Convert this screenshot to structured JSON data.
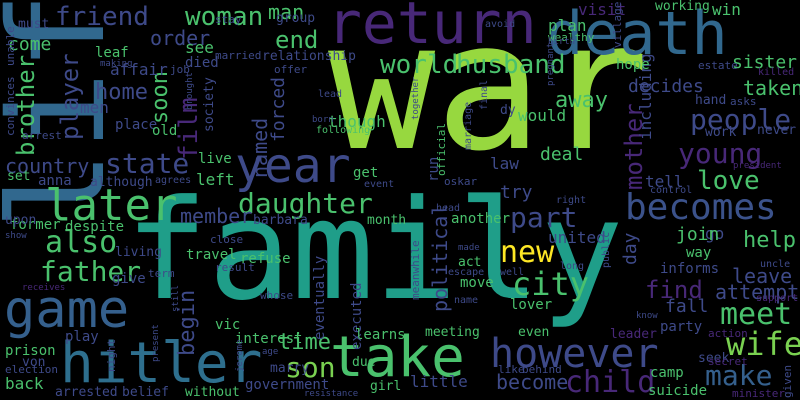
{
  "background": "#000000",
  "palette": {
    "green": "#97d83f",
    "teal": "#1f9e89",
    "blue": "#31688e",
    "purple": "#482878",
    "mint": "#4ac16d",
    "slate": "#3e4a89"
  },
  "words": [
    {
      "text": "life",
      "color": "#31688e"
    },
    {
      "text": "war",
      "color": "#97d83f"
    },
    {
      "text": "family",
      "color": "#1f9e89"
    },
    {
      "text": "death",
      "color": "#31688e"
    },
    {
      "text": "return",
      "color": "#482878"
    },
    {
      "text": "hitler",
      "color": "#2e6f8e"
    },
    {
      "text": "game",
      "color": "#35608d"
    },
    {
      "text": "take",
      "color": "#4ac16d"
    },
    {
      "text": "however",
      "color": "#3e4a89"
    },
    {
      "text": "becomes",
      "color": "#3b528b"
    },
    {
      "text": "year",
      "color": "#3e4a89"
    },
    {
      "text": "later",
      "color": "#4ac16d"
    },
    {
      "text": "daughter",
      "color": "#4ac16d"
    },
    {
      "text": "father",
      "color": "#4ac16d"
    },
    {
      "text": "people",
      "color": "#3e4a89"
    },
    {
      "text": "young",
      "color": "#482878"
    },
    {
      "text": "world",
      "color": "#4ac16d"
    },
    {
      "text": "husband",
      "color": "#4ac16d"
    },
    {
      "text": "city",
      "color": "#4ac16d"
    },
    {
      "text": "son",
      "color": "#7ad151"
    },
    {
      "text": "wife",
      "color": "#7ad151"
    },
    {
      "text": "meet",
      "color": "#4ac16d"
    },
    {
      "text": "child",
      "color": "#482878"
    },
    {
      "text": "make",
      "color": "#35608d"
    },
    {
      "text": "love",
      "color": "#4ac16d"
    },
    {
      "text": "new",
      "color": "#fde725"
    },
    {
      "text": "also",
      "color": "#4ac16d"
    },
    {
      "text": "part",
      "color": "#3e4a89"
    },
    {
      "text": "country",
      "color": "#3e4a89"
    },
    {
      "text": "state",
      "color": "#3e4a89"
    },
    {
      "text": "woman",
      "color": "#4ac16d"
    },
    {
      "text": "friend",
      "color": "#3e4a89"
    },
    {
      "text": "player",
      "color": "#3e4a89"
    },
    {
      "text": "brother",
      "color": "#4ac16d"
    },
    {
      "text": "film",
      "color": "#482878"
    },
    {
      "text": "home",
      "color": "#3e4a89"
    },
    {
      "text": "end",
      "color": "#4ac16d"
    },
    {
      "text": "man",
      "color": "#4ac16d"
    },
    {
      "text": "order",
      "color": "#3e4a89"
    },
    {
      "text": "begin",
      "color": "#3e4a89"
    },
    {
      "text": "soon",
      "color": "#4ac16d"
    },
    {
      "text": "become",
      "color": "#3e4a89"
    },
    {
      "text": "time",
      "color": "#4ac16d"
    },
    {
      "text": "named",
      "color": "#3e4a89"
    },
    {
      "text": "member",
      "color": "#3e4a89"
    },
    {
      "text": "mother",
      "color": "#482878"
    },
    {
      "text": "taken",
      "color": "#4ac16d"
    },
    {
      "text": "away",
      "color": "#4ac16d"
    },
    {
      "text": "help",
      "color": "#4ac16d"
    },
    {
      "text": "leave",
      "color": "#3e4a89"
    },
    {
      "text": "attempt",
      "color": "#3e4a89"
    },
    {
      "text": "find",
      "color": "#482878"
    },
    {
      "text": "fall",
      "color": "#3e4a89"
    },
    {
      "text": "political",
      "color": "#3e4a89"
    },
    {
      "text": "united",
      "color": "#3e4a89"
    },
    {
      "text": "try",
      "color": "#3e4a89"
    },
    {
      "text": "deal",
      "color": "#4ac16d"
    },
    {
      "text": "day",
      "color": "#3e4a89"
    },
    {
      "text": "go",
      "color": "#3e4a89"
    },
    {
      "text": "join",
      "color": "#4ac16d"
    },
    {
      "text": "sister",
      "color": "#4ac16d"
    },
    {
      "text": "decides",
      "color": "#3e4a89"
    },
    {
      "text": "visit",
      "color": "#482878"
    },
    {
      "text": "plan",
      "color": "#4ac16d"
    },
    {
      "text": "win",
      "color": "#4ac16d"
    },
    {
      "text": "working",
      "color": "#4ac16d"
    },
    {
      "text": "including",
      "color": "#3e4a89"
    },
    {
      "text": "work",
      "color": "#3e4a89"
    },
    {
      "text": "hand",
      "color": "#3e4a89"
    },
    {
      "text": "never",
      "color": "#3e4a89"
    },
    {
      "text": "hope",
      "color": "#4ac16d"
    },
    {
      "text": "would",
      "color": "#4ac16d"
    },
    {
      "text": "though",
      "color": "#4ac16d"
    },
    {
      "text": "law",
      "color": "#3e4a89"
    },
    {
      "text": "run",
      "color": "#3e4a89"
    },
    {
      "text": "get",
      "color": "#4ac16d"
    },
    {
      "text": "tell",
      "color": "#3e4a89"
    },
    {
      "text": "set",
      "color": "#4ac16d"
    },
    {
      "text": "anna",
      "color": "#3e4a89"
    },
    {
      "text": "although",
      "color": "#3e4a89"
    },
    {
      "text": "left",
      "color": "#4ac16d"
    },
    {
      "text": "live",
      "color": "#4ac16d"
    },
    {
      "text": "forced",
      "color": "#3e4a89"
    },
    {
      "text": "relationship",
      "color": "#3e4a89"
    },
    {
      "text": "come",
      "color": "#4ac16d"
    },
    {
      "text": "must",
      "color": "#3e4a89"
    },
    {
      "text": "affair",
      "color": "#3e4a89"
    },
    {
      "text": "place",
      "color": "#3e4a89"
    },
    {
      "text": "men",
      "color": "#3e4a89"
    },
    {
      "text": "old",
      "color": "#4ac16d"
    },
    {
      "text": "see",
      "color": "#4ac16d"
    },
    {
      "text": "leaf",
      "color": "#4ac16d"
    },
    {
      "text": "died",
      "color": "#3e4a89"
    },
    {
      "text": "group",
      "color": "#3e4a89"
    },
    {
      "text": "society",
      "color": "#3e4a89"
    },
    {
      "text": "former",
      "color": "#4ac16d"
    },
    {
      "text": "despite",
      "color": "#4ac16d"
    },
    {
      "text": "upon",
      "color": "#3e4a89"
    },
    {
      "text": "barbara",
      "color": "#3e4a89"
    },
    {
      "text": "month",
      "color": "#4ac16d"
    },
    {
      "text": "another",
      "color": "#4ac16d"
    },
    {
      "text": "living",
      "color": "#3e4a89"
    },
    {
      "text": "give",
      "color": "#3e4a89"
    },
    {
      "text": "travel",
      "color": "#4ac16d"
    },
    {
      "text": "refuse",
      "color": "#4ac16d"
    },
    {
      "text": "act",
      "color": "#4ac16d"
    },
    {
      "text": "move",
      "color": "#4ac16d"
    },
    {
      "text": "vic",
      "color": "#4ac16d"
    },
    {
      "text": "interest",
      "color": "#4ac16d"
    },
    {
      "text": "eventually",
      "color": "#3e4a89"
    },
    {
      "text": "executed",
      "color": "#3e4a89"
    },
    {
      "text": "learns",
      "color": "#4ac16d"
    },
    {
      "text": "lover",
      "color": "#4ac16d"
    },
    {
      "text": "informs",
      "color": "#3e4a89"
    },
    {
      "text": "party",
      "color": "#3e4a89"
    },
    {
      "text": "way",
      "color": "#4ac16d"
    },
    {
      "text": "play",
      "color": "#3e4a89"
    },
    {
      "text": "prison",
      "color": "#4ac16d"
    },
    {
      "text": "von",
      "color": "#3e4a89"
    },
    {
      "text": "back",
      "color": "#4ac16d"
    },
    {
      "text": "arrested",
      "color": "#3e4a89"
    },
    {
      "text": "belief",
      "color": "#3e4a89"
    },
    {
      "text": "without",
      "color": "#4ac16d"
    },
    {
      "text": "government",
      "color": "#3e4a89"
    },
    {
      "text": "marry",
      "color": "#3e4a89"
    },
    {
      "text": "meeting",
      "color": "#4ac16d"
    },
    {
      "text": "even",
      "color": "#4ac16d"
    },
    {
      "text": "leader",
      "color": "#482878"
    },
    {
      "text": "little",
      "color": "#3e4a89"
    },
    {
      "text": "suicide",
      "color": "#4ac16d"
    },
    {
      "text": "camp",
      "color": "#4ac16d"
    },
    {
      "text": "seek",
      "color": "#3e4a89"
    },
    {
      "text": "girl",
      "color": "#4ac16d"
    },
    {
      "text": "due",
      "color": "#4ac16d"
    },
    {
      "text": "action",
      "color": "#482878"
    },
    {
      "text": "secret",
      "color": "#482878"
    },
    {
      "text": "minister",
      "color": "#482878"
    },
    {
      "text": "election",
      "color": "#3e4a89"
    },
    {
      "text": "behind",
      "color": "#3e4a89"
    },
    {
      "text": "like",
      "color": "#3e4a89"
    },
    {
      "text": "given",
      "color": "#3e4a89"
    },
    {
      "text": "night",
      "color": "#3e4a89"
    },
    {
      "text": "convinces",
      "color": "#3e4a89"
    },
    {
      "text": "arrest",
      "color": "#3e4a89"
    },
    {
      "text": "unable",
      "color": "#3e4a89"
    },
    {
      "text": "stay",
      "color": "#3e4a89"
    },
    {
      "text": "married",
      "color": "#3e4a89"
    },
    {
      "text": "job",
      "color": "#3e4a89"
    },
    {
      "text": "offer",
      "color": "#3e4a89"
    },
    {
      "text": "wealthy",
      "color": "#4ac16d"
    },
    {
      "text": "birth",
      "color": "#3e4a89"
    },
    {
      "text": "village",
      "color": "#3e4a89"
    },
    {
      "text": "avoid",
      "color": "#3e4a89"
    },
    {
      "text": "estate",
      "color": "#3e4a89"
    },
    {
      "text": "killed",
      "color": "#482878"
    },
    {
      "text": "asks",
      "color": "#3e4a89"
    },
    {
      "text": "lead",
      "color": "#3e4a89"
    },
    {
      "text": "born",
      "color": "#3e4a89"
    },
    {
      "text": "following",
      "color": "#4ac16d"
    },
    {
      "text": "final",
      "color": "#3e4a89"
    },
    {
      "text": "marriage",
      "color": "#3e4a89"
    },
    {
      "text": "official",
      "color": "#4ac16d"
    },
    {
      "text": "oskar",
      "color": "#3e4a89"
    },
    {
      "text": "head",
      "color": "#3e4a89"
    },
    {
      "text": "event",
      "color": "#3e4a89"
    },
    {
      "text": "agrees",
      "color": "#3e4a89"
    },
    {
      "text": "term",
      "color": "#3e4a89"
    },
    {
      "text": "close",
      "color": "#3e4a89"
    },
    {
      "text": "result",
      "color": "#3e4a89"
    },
    {
      "text": "whose",
      "color": "#3e4a89"
    },
    {
      "text": "meanwhile",
      "color": "#3e4a89"
    },
    {
      "text": "escape",
      "color": "#3e4a89"
    },
    {
      "text": "well",
      "color": "#3e4a89"
    },
    {
      "text": "name",
      "color": "#3e4a89"
    },
    {
      "text": "made",
      "color": "#3e4a89"
    },
    {
      "text": "long",
      "color": "#3e4a89"
    },
    {
      "text": "right",
      "color": "#3e4a89"
    },
    {
      "text": "public",
      "color": "#3e4a89"
    },
    {
      "text": "control",
      "color": "#3e4a89"
    },
    {
      "text": "know",
      "color": "#3e4a89"
    },
    {
      "text": "president",
      "color": "#482878"
    },
    {
      "text": "uncle",
      "color": "#3e4a89"
    },
    {
      "text": "support",
      "color": "#482878"
    },
    {
      "text": "resistance",
      "color": "#3e4a89"
    },
    {
      "text": "present",
      "color": "#3e4a89"
    },
    {
      "text": "still",
      "color": "#3e4a89"
    },
    {
      "text": "jerome",
      "color": "#3e4a89"
    },
    {
      "text": "age",
      "color": "#3e4a89"
    },
    {
      "text": "receives",
      "color": "#482878"
    },
    {
      "text": "show",
      "color": "#3e4a89"
    },
    {
      "text": "making",
      "color": "#3e4a89"
    },
    {
      "text": "brought",
      "color": "#3e4a89"
    },
    {
      "text": "pregnant",
      "color": "#3e4a89"
    },
    {
      "text": "together",
      "color": "#3e4a89"
    },
    {
      "text": "dy",
      "color": "#3e4a89"
    }
  ]
}
